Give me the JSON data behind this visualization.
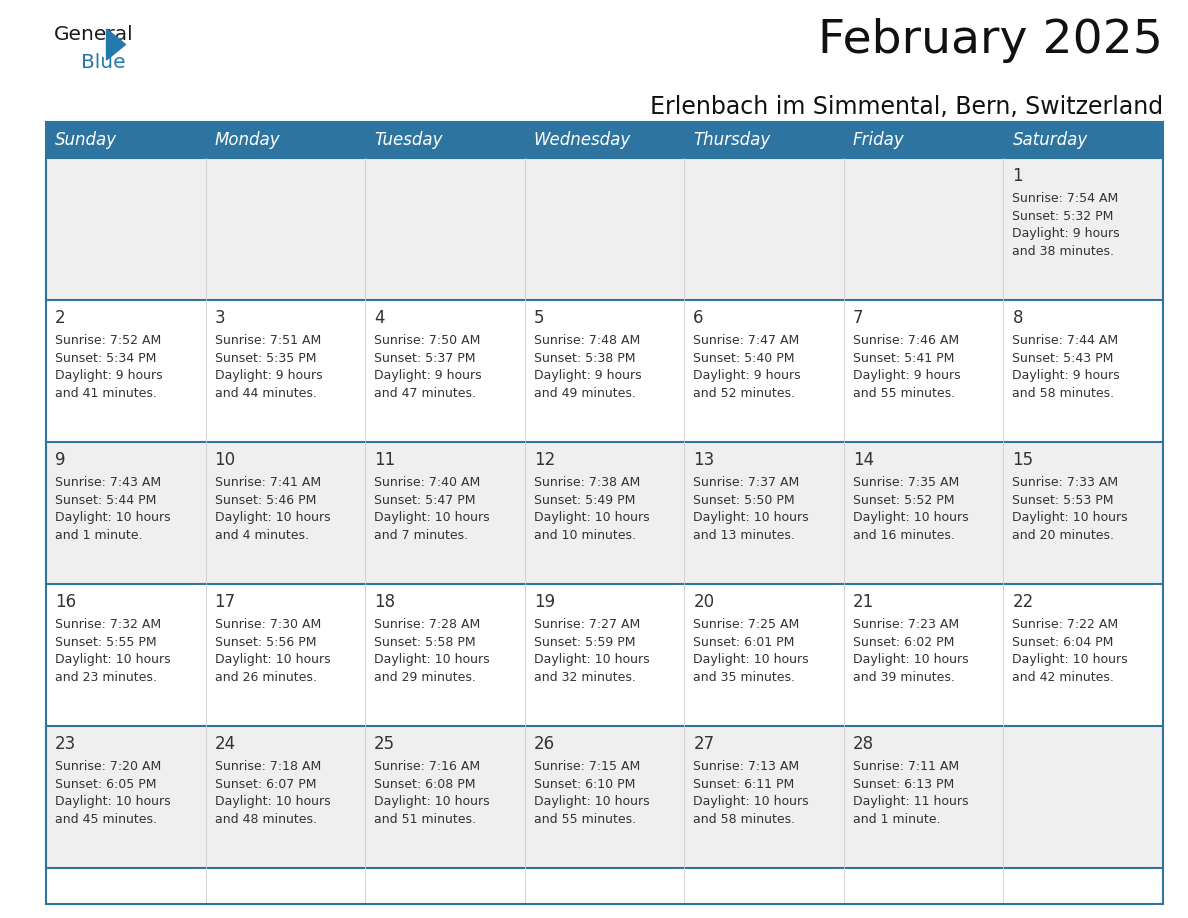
{
  "title": "February 2025",
  "subtitle": "Erlenbach im Simmental, Bern, Switzerland",
  "header_bg": "#2E74A0",
  "header_text": "#FFFFFF",
  "row_bg_light": "#EFEFEF",
  "row_bg_white": "#FFFFFF",
  "separator_color": "#2E74A0",
  "day_headers": [
    "Sunday",
    "Monday",
    "Tuesday",
    "Wednesday",
    "Thursday",
    "Friday",
    "Saturday"
  ],
  "days": [
    {
      "date": 1,
      "col": 6,
      "row": 0,
      "sunrise": "7:54 AM",
      "sunset": "5:32 PM",
      "daylight_line1": "Daylight: 9 hours",
      "daylight_line2": "and 38 minutes."
    },
    {
      "date": 2,
      "col": 0,
      "row": 1,
      "sunrise": "7:52 AM",
      "sunset": "5:34 PM",
      "daylight_line1": "Daylight: 9 hours",
      "daylight_line2": "and 41 minutes."
    },
    {
      "date": 3,
      "col": 1,
      "row": 1,
      "sunrise": "7:51 AM",
      "sunset": "5:35 PM",
      "daylight_line1": "Daylight: 9 hours",
      "daylight_line2": "and 44 minutes."
    },
    {
      "date": 4,
      "col": 2,
      "row": 1,
      "sunrise": "7:50 AM",
      "sunset": "5:37 PM",
      "daylight_line1": "Daylight: 9 hours",
      "daylight_line2": "and 47 minutes."
    },
    {
      "date": 5,
      "col": 3,
      "row": 1,
      "sunrise": "7:48 AM",
      "sunset": "5:38 PM",
      "daylight_line1": "Daylight: 9 hours",
      "daylight_line2": "and 49 minutes."
    },
    {
      "date": 6,
      "col": 4,
      "row": 1,
      "sunrise": "7:47 AM",
      "sunset": "5:40 PM",
      "daylight_line1": "Daylight: 9 hours",
      "daylight_line2": "and 52 minutes."
    },
    {
      "date": 7,
      "col": 5,
      "row": 1,
      "sunrise": "7:46 AM",
      "sunset": "5:41 PM",
      "daylight_line1": "Daylight: 9 hours",
      "daylight_line2": "and 55 minutes."
    },
    {
      "date": 8,
      "col": 6,
      "row": 1,
      "sunrise": "7:44 AM",
      "sunset": "5:43 PM",
      "daylight_line1": "Daylight: 9 hours",
      "daylight_line2": "and 58 minutes."
    },
    {
      "date": 9,
      "col": 0,
      "row": 2,
      "sunrise": "7:43 AM",
      "sunset": "5:44 PM",
      "daylight_line1": "Daylight: 10 hours",
      "daylight_line2": "and 1 minute."
    },
    {
      "date": 10,
      "col": 1,
      "row": 2,
      "sunrise": "7:41 AM",
      "sunset": "5:46 PM",
      "daylight_line1": "Daylight: 10 hours",
      "daylight_line2": "and 4 minutes."
    },
    {
      "date": 11,
      "col": 2,
      "row": 2,
      "sunrise": "7:40 AM",
      "sunset": "5:47 PM",
      "daylight_line1": "Daylight: 10 hours",
      "daylight_line2": "and 7 minutes."
    },
    {
      "date": 12,
      "col": 3,
      "row": 2,
      "sunrise": "7:38 AM",
      "sunset": "5:49 PM",
      "daylight_line1": "Daylight: 10 hours",
      "daylight_line2": "and 10 minutes."
    },
    {
      "date": 13,
      "col": 4,
      "row": 2,
      "sunrise": "7:37 AM",
      "sunset": "5:50 PM",
      "daylight_line1": "Daylight: 10 hours",
      "daylight_line2": "and 13 minutes."
    },
    {
      "date": 14,
      "col": 5,
      "row": 2,
      "sunrise": "7:35 AM",
      "sunset": "5:52 PM",
      "daylight_line1": "Daylight: 10 hours",
      "daylight_line2": "and 16 minutes."
    },
    {
      "date": 15,
      "col": 6,
      "row": 2,
      "sunrise": "7:33 AM",
      "sunset": "5:53 PM",
      "daylight_line1": "Daylight: 10 hours",
      "daylight_line2": "and 20 minutes."
    },
    {
      "date": 16,
      "col": 0,
      "row": 3,
      "sunrise": "7:32 AM",
      "sunset": "5:55 PM",
      "daylight_line1": "Daylight: 10 hours",
      "daylight_line2": "and 23 minutes."
    },
    {
      "date": 17,
      "col": 1,
      "row": 3,
      "sunrise": "7:30 AM",
      "sunset": "5:56 PM",
      "daylight_line1": "Daylight: 10 hours",
      "daylight_line2": "and 26 minutes."
    },
    {
      "date": 18,
      "col": 2,
      "row": 3,
      "sunrise": "7:28 AM",
      "sunset": "5:58 PM",
      "daylight_line1": "Daylight: 10 hours",
      "daylight_line2": "and 29 minutes."
    },
    {
      "date": 19,
      "col": 3,
      "row": 3,
      "sunrise": "7:27 AM",
      "sunset": "5:59 PM",
      "daylight_line1": "Daylight: 10 hours",
      "daylight_line2": "and 32 minutes."
    },
    {
      "date": 20,
      "col": 4,
      "row": 3,
      "sunrise": "7:25 AM",
      "sunset": "6:01 PM",
      "daylight_line1": "Daylight: 10 hours",
      "daylight_line2": "and 35 minutes."
    },
    {
      "date": 21,
      "col": 5,
      "row": 3,
      "sunrise": "7:23 AM",
      "sunset": "6:02 PM",
      "daylight_line1": "Daylight: 10 hours",
      "daylight_line2": "and 39 minutes."
    },
    {
      "date": 22,
      "col": 6,
      "row": 3,
      "sunrise": "7:22 AM",
      "sunset": "6:04 PM",
      "daylight_line1": "Daylight: 10 hours",
      "daylight_line2": "and 42 minutes."
    },
    {
      "date": 23,
      "col": 0,
      "row": 4,
      "sunrise": "7:20 AM",
      "sunset": "6:05 PM",
      "daylight_line1": "Daylight: 10 hours",
      "daylight_line2": "and 45 minutes."
    },
    {
      "date": 24,
      "col": 1,
      "row": 4,
      "sunrise": "7:18 AM",
      "sunset": "6:07 PM",
      "daylight_line1": "Daylight: 10 hours",
      "daylight_line2": "and 48 minutes."
    },
    {
      "date": 25,
      "col": 2,
      "row": 4,
      "sunrise": "7:16 AM",
      "sunset": "6:08 PM",
      "daylight_line1": "Daylight: 10 hours",
      "daylight_line2": "and 51 minutes."
    },
    {
      "date": 26,
      "col": 3,
      "row": 4,
      "sunrise": "7:15 AM",
      "sunset": "6:10 PM",
      "daylight_line1": "Daylight: 10 hours",
      "daylight_line2": "and 55 minutes."
    },
    {
      "date": 27,
      "col": 4,
      "row": 4,
      "sunrise": "7:13 AM",
      "sunset": "6:11 PM",
      "daylight_line1": "Daylight: 10 hours",
      "daylight_line2": "and 58 minutes."
    },
    {
      "date": 28,
      "col": 5,
      "row": 4,
      "sunrise": "7:11 AM",
      "sunset": "6:13 PM",
      "daylight_line1": "Daylight: 11 hours",
      "daylight_line2": "and 1 minute."
    }
  ],
  "num_rows": 5,
  "num_cols": 7,
  "logo_color_general": "#1a1a1a",
  "logo_color_blue": "#2479AB",
  "title_fontsize": 34,
  "subtitle_fontsize": 17,
  "header_fontsize": 12,
  "date_fontsize": 12,
  "info_fontsize": 9.0
}
